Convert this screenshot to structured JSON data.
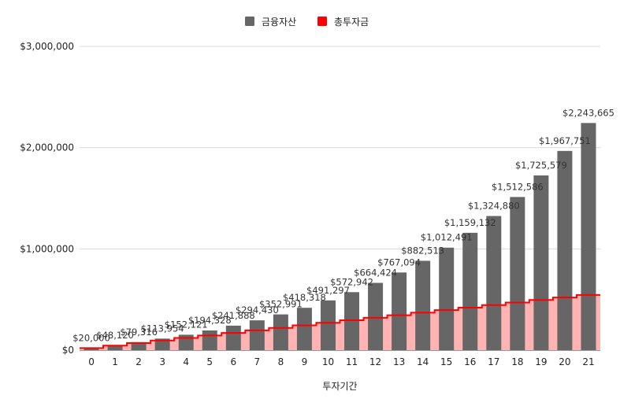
{
  "chart_data": {
    "type": "bar",
    "xlabel": "투자기간",
    "ylabel": "",
    "ylim": [
      0,
      3000000
    ],
    "yticks": [
      0,
      1000000,
      2000000,
      3000000
    ],
    "ytick_labels": [
      "$0",
      "$1,000,000",
      "$2,000,000",
      "$3,000,000"
    ],
    "categories": [
      "0",
      "1",
      "2",
      "3",
      "4",
      "5",
      "6",
      "7",
      "8",
      "9",
      "10",
      "11",
      "12",
      "13",
      "14",
      "15",
      "16",
      "17",
      "18",
      "19",
      "20",
      "21"
    ],
    "grid": true,
    "legend_position": "top",
    "series": [
      {
        "name": "금융자산",
        "type": "bar",
        "color": "#666666",
        "values": [
          20000,
          48120,
          79316,
          113954,
          152121,
          194328,
          241888,
          294430,
          352991,
          418318,
          491297,
          572942,
          664424,
          767094,
          882513,
          1012491,
          1159132,
          1324880,
          1512586,
          1725579,
          1967751,
          2243665
        ],
        "labels": [
          "$20,000",
          "$48,120",
          "$79,316",
          "$113,954",
          "$152,121",
          "$194,328",
          "$241,888",
          "$294,430",
          "$352,991",
          "$418,318",
          "$491,297",
          "$572,942",
          "$664,424",
          "$767,094",
          "$882,513",
          "$1,012,491",
          "$1,159,132",
          "$1,324,880",
          "$1,512,586",
          "$1,725,579",
          "$1,967,751",
          "$2,243,665"
        ]
      },
      {
        "name": "총투자금",
        "type": "stepped-area",
        "color": "#ff0000",
        "fill": "#ffb3b3",
        "values": [
          20000,
          45000,
          70000,
          95000,
          120000,
          145000,
          170000,
          195000,
          220000,
          245000,
          270000,
          295000,
          320000,
          345000,
          370000,
          395000,
          420000,
          445000,
          470000,
          495000,
          520000,
          545000
        ]
      }
    ]
  }
}
